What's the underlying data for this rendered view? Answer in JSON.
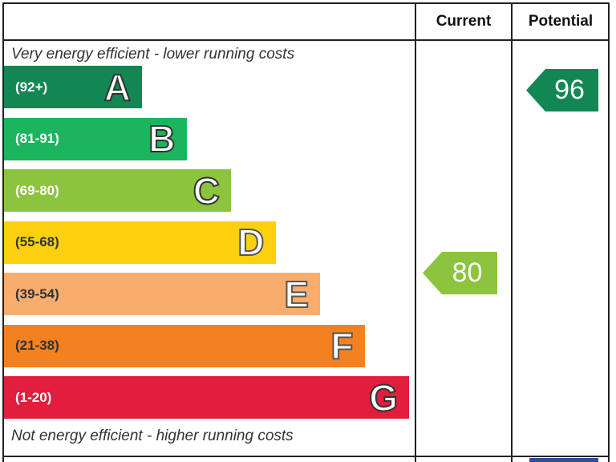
{
  "chart_data": {
    "type": "bar",
    "title": "",
    "columns": [
      "Current",
      "Potential"
    ],
    "top_caption": "Very energy efficient - lower running costs",
    "bottom_caption": "Not energy efficient - higher running costs",
    "bands": [
      {
        "letter": "A",
        "range": "(92+)",
        "min": 92,
        "max": 100,
        "color": "#128754"
      },
      {
        "letter": "B",
        "range": "(81-91)",
        "min": 81,
        "max": 91,
        "color": "#1cb45c"
      },
      {
        "letter": "C",
        "range": "(69-80)",
        "min": 69,
        "max": 80,
        "color": "#8cc43e"
      },
      {
        "letter": "D",
        "range": "(55-68)",
        "min": 55,
        "max": 68,
        "color": "#ffd00f"
      },
      {
        "letter": "E",
        "range": "(39-54)",
        "min": 39,
        "max": 54,
        "color": "#f9ad6d"
      },
      {
        "letter": "F",
        "range": "(21-38)",
        "min": 21,
        "max": 38,
        "color": "#f48120"
      },
      {
        "letter": "G",
        "range": "(1-20)",
        "min": 1,
        "max": 20,
        "color": "#e31d3c"
      }
    ],
    "current": {
      "value": 80,
      "band": "C",
      "color": "#8cc43e"
    },
    "potential": {
      "value": 96,
      "band": "A",
      "color": "#128754"
    }
  }
}
